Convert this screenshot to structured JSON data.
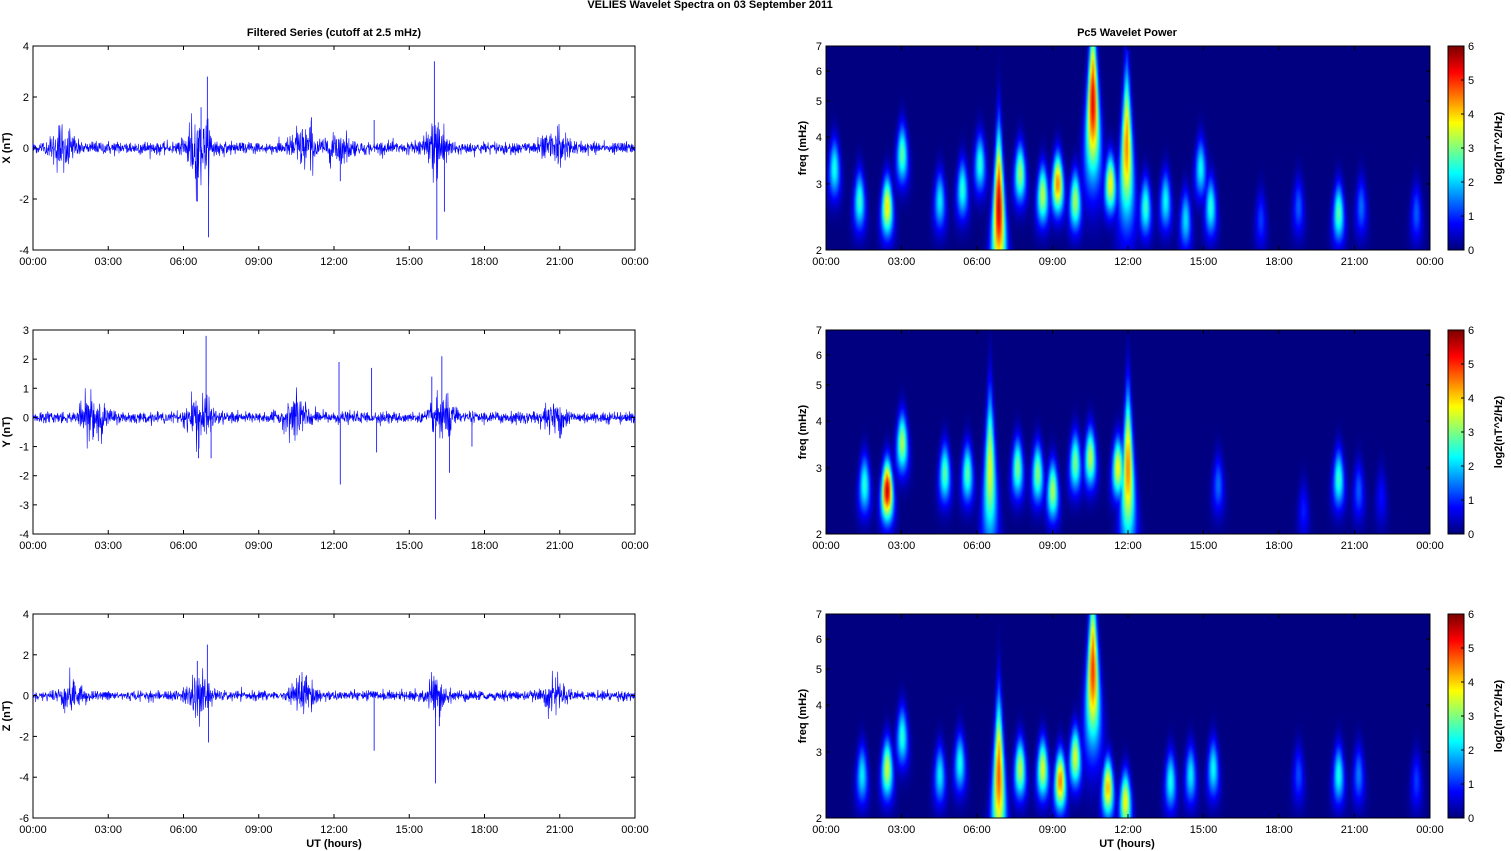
{
  "figure": {
    "title": "VELIES Wavelet Spectra on 03 September 2011",
    "left_title": "Filtered Series (cutoff at 2.5 mHz)",
    "right_title": "Pc5 Wavelet Power",
    "xlabel": "UT (hours)"
  },
  "chart_data": [
    {
      "type": "line",
      "panel": "X",
      "title": "Filtered Series (cutoff at 2.5 mHz)",
      "ylabel": "X (nT)",
      "xlabel": "",
      "xlim": [
        0,
        24
      ],
      "ylim": [
        -4,
        4
      ],
      "yticks": [
        -4,
        -2,
        0,
        2,
        4
      ],
      "xticklabels": [
        "00:00",
        "03:00",
        "06:00",
        "09:00",
        "12:00",
        "15:00",
        "18:00",
        "21:00",
        "00:00"
      ],
      "color": "#0000ff",
      "base_amplitude": 0.15,
      "bursts": [
        {
          "t": 1.2,
          "amp": 0.45
        },
        {
          "t": 6.6,
          "amp": 0.8
        },
        {
          "t": 10.8,
          "amp": 0.55
        },
        {
          "t": 12.2,
          "amp": 0.35
        },
        {
          "t": 16.1,
          "amp": 0.6
        },
        {
          "t": 20.8,
          "amp": 0.45
        }
      ],
      "spikes": [
        {
          "t": 6.55,
          "v": -2.1
        },
        {
          "t": 6.7,
          "v": 1.6
        },
        {
          "t": 6.95,
          "v": 2.8
        },
        {
          "t": 7.0,
          "v": -3.5
        },
        {
          "t": 11.1,
          "v": 1.2
        },
        {
          "t": 12.25,
          "v": -1.3
        },
        {
          "t": 13.6,
          "v": 1.1
        },
        {
          "t": 16.0,
          "v": 3.4
        },
        {
          "t": 16.1,
          "v": -3.6
        },
        {
          "t": 16.4,
          "v": -2.5
        }
      ]
    },
    {
      "type": "line",
      "panel": "Y",
      "title": "",
      "ylabel": "Y (nT)",
      "xlabel": "",
      "xlim": [
        0,
        24
      ],
      "ylim": [
        -4,
        3
      ],
      "yticks": [
        -4,
        -3,
        -2,
        -1,
        0,
        1,
        2,
        3
      ],
      "xticklabels": [
        "00:00",
        "03:00",
        "06:00",
        "09:00",
        "12:00",
        "15:00",
        "18:00",
        "21:00",
        "00:00"
      ],
      "color": "#0000ff",
      "base_amplitude": 0.12,
      "bursts": [
        {
          "t": 2.4,
          "amp": 0.5
        },
        {
          "t": 6.6,
          "amp": 0.5
        },
        {
          "t": 10.5,
          "amp": 0.4
        },
        {
          "t": 16.3,
          "amp": 0.45
        },
        {
          "t": 20.8,
          "amp": 0.3
        }
      ],
      "spikes": [
        {
          "t": 6.6,
          "v": -1.4
        },
        {
          "t": 6.9,
          "v": 2.8
        },
        {
          "t": 7.1,
          "v": -1.4
        },
        {
          "t": 12.2,
          "v": 1.9
        },
        {
          "t": 12.25,
          "v": -2.3
        },
        {
          "t": 13.5,
          "v": 1.7
        },
        {
          "t": 13.7,
          "v": -1.2
        },
        {
          "t": 15.9,
          "v": 1.4
        },
        {
          "t": 16.05,
          "v": -3.5
        },
        {
          "t": 16.3,
          "v": 2.1
        },
        {
          "t": 16.6,
          "v": -1.9
        },
        {
          "t": 17.5,
          "v": -1.0
        }
      ]
    },
    {
      "type": "line",
      "panel": "Z",
      "title": "",
      "ylabel": "Z (nT)",
      "xlabel": "UT (hours)",
      "xlim": [
        0,
        24
      ],
      "ylim": [
        -6,
        4
      ],
      "yticks": [
        -6,
        -4,
        -2,
        0,
        2,
        4
      ],
      "xticklabels": [
        "00:00",
        "03:00",
        "06:00",
        "09:00",
        "12:00",
        "15:00",
        "18:00",
        "21:00",
        "00:00"
      ],
      "color": "#0000ff",
      "base_amplitude": 0.15,
      "bursts": [
        {
          "t": 1.5,
          "amp": 0.4
        },
        {
          "t": 6.6,
          "amp": 0.6
        },
        {
          "t": 10.8,
          "amp": 0.5
        },
        {
          "t": 16.0,
          "amp": 0.45
        },
        {
          "t": 20.8,
          "amp": 0.4
        }
      ],
      "spikes": [
        {
          "t": 6.55,
          "v": 1.7
        },
        {
          "t": 6.95,
          "v": 2.5
        },
        {
          "t": 7.0,
          "v": -2.3
        },
        {
          "t": 10.9,
          "v": 1.0
        },
        {
          "t": 13.6,
          "v": -2.7
        },
        {
          "t": 16.05,
          "v": -4.3
        },
        {
          "t": 16.2,
          "v": -1.5
        }
      ]
    },
    {
      "type": "heatmap",
      "panel": "X",
      "title": "Pc5 Wavelet Power",
      "ylabel": "freq (mHz)",
      "xlabel": "",
      "xlim": [
        0,
        24
      ],
      "ylim": [
        2,
        7
      ],
      "yscale": "log",
      "yticks": [
        2,
        3,
        4,
        5,
        6,
        7
      ],
      "xticklabels": [
        "00:00",
        "03:00",
        "06:00",
        "09:00",
        "12:00",
        "15:00",
        "18:00",
        "21:00",
        "00:00"
      ],
      "colorbar_label": "log2(nT^2/Hz)",
      "clim": [
        0,
        6
      ],
      "colorbar_ticks": [
        0,
        1,
        2,
        3,
        4,
        5,
        6
      ],
      "blobs": [
        {
          "t": 0.3,
          "f": 3.3,
          "p": 2.4
        },
        {
          "t": 1.3,
          "f": 2.7,
          "p": 2.6
        },
        {
          "t": 2.4,
          "f": 2.6,
          "p": 3.9
        },
        {
          "t": 3.0,
          "f": 3.6,
          "p": 2.8
        },
        {
          "t": 4.5,
          "f": 2.7,
          "p": 2.2
        },
        {
          "t": 5.4,
          "f": 2.9,
          "p": 2.5
        },
        {
          "t": 6.1,
          "f": 3.4,
          "p": 2.5
        },
        {
          "t": 6.85,
          "f": 2.6,
          "p": 5.6,
          "col": true
        },
        {
          "t": 7.7,
          "f": 3.2,
          "p": 3.2
        },
        {
          "t": 8.6,
          "f": 2.8,
          "p": 3.4
        },
        {
          "t": 9.2,
          "f": 3.0,
          "p": 4.5
        },
        {
          "t": 9.9,
          "f": 2.7,
          "p": 3.3
        },
        {
          "t": 10.6,
          "f": 5.0,
          "p": 5.4,
          "col": true
        },
        {
          "t": 11.3,
          "f": 3.0,
          "p": 3.8
        },
        {
          "t": 11.95,
          "f": 3.8,
          "p": 4.5,
          "col": true
        },
        {
          "t": 12.7,
          "f": 2.6,
          "p": 2.6
        },
        {
          "t": 13.5,
          "f": 2.7,
          "p": 2.3
        },
        {
          "t": 14.3,
          "f": 2.4,
          "p": 2.1
        },
        {
          "t": 14.9,
          "f": 3.3,
          "p": 2.3
        },
        {
          "t": 15.3,
          "f": 2.6,
          "p": 2.5
        },
        {
          "t": 17.3,
          "f": 2.4,
          "p": 1.1
        },
        {
          "t": 18.8,
          "f": 2.6,
          "p": 1.3
        },
        {
          "t": 20.4,
          "f": 2.5,
          "p": 2.8
        },
        {
          "t": 21.3,
          "f": 2.6,
          "p": 1.4
        },
        {
          "t": 23.5,
          "f": 2.5,
          "p": 1.3
        }
      ]
    },
    {
      "type": "heatmap",
      "panel": "Y",
      "title": "",
      "ylabel": "freq (mHz)",
      "xlabel": "",
      "xlim": [
        0,
        24
      ],
      "ylim": [
        2,
        7
      ],
      "yscale": "log",
      "yticks": [
        2,
        3,
        4,
        5,
        6,
        7
      ],
      "xticklabels": [
        "00:00",
        "03:00",
        "06:00",
        "09:00",
        "12:00",
        "15:00",
        "18:00",
        "21:00",
        "00:00"
      ],
      "colorbar_label": "log2(nT^2/Hz)",
      "clim": [
        0,
        6
      ],
      "colorbar_ticks": [
        0,
        1,
        2,
        3,
        4,
        5,
        6
      ],
      "blobs": [
        {
          "t": 1.5,
          "f": 2.7,
          "p": 2.5
        },
        {
          "t": 2.4,
          "f": 2.6,
          "p": 5.6
        },
        {
          "t": 3.0,
          "f": 3.5,
          "p": 3.3
        },
        {
          "t": 4.7,
          "f": 2.9,
          "p": 2.8
        },
        {
          "t": 5.6,
          "f": 2.9,
          "p": 2.8
        },
        {
          "t": 6.5,
          "f": 3.0,
          "p": 3.6,
          "col": true
        },
        {
          "t": 7.6,
          "f": 3.0,
          "p": 3.0
        },
        {
          "t": 8.4,
          "f": 2.9,
          "p": 3.1
        },
        {
          "t": 9.0,
          "f": 2.6,
          "p": 3.3
        },
        {
          "t": 9.9,
          "f": 3.1,
          "p": 3.0
        },
        {
          "t": 10.5,
          "f": 3.2,
          "p": 3.4
        },
        {
          "t": 11.6,
          "f": 3.0,
          "p": 3.8
        },
        {
          "t": 12.0,
          "f": 3.0,
          "p": 4.5,
          "col": true
        },
        {
          "t": 15.6,
          "f": 2.7,
          "p": 1.4
        },
        {
          "t": 19.0,
          "f": 2.3,
          "p": 0.9
        },
        {
          "t": 20.4,
          "f": 2.8,
          "p": 2.6
        },
        {
          "t": 21.2,
          "f": 2.6,
          "p": 1.3
        },
        {
          "t": 22.1,
          "f": 2.5,
          "p": 0.8
        }
      ]
    },
    {
      "type": "heatmap",
      "panel": "Z",
      "title": "",
      "ylabel": "freq (mHz)",
      "xlabel": "UT (hours)",
      "xlim": [
        0,
        24
      ],
      "ylim": [
        2,
        7
      ],
      "yscale": "log",
      "yticks": [
        2,
        3,
        4,
        5,
        6,
        7
      ],
      "xticklabels": [
        "00:00",
        "03:00",
        "06:00",
        "09:00",
        "12:00",
        "15:00",
        "18:00",
        "21:00",
        "00:00"
      ],
      "colorbar_label": "log2(nT^2/Hz)",
      "clim": [
        0,
        6
      ],
      "colorbar_ticks": [
        0,
        1,
        2,
        3,
        4,
        5,
        6
      ],
      "blobs": [
        {
          "t": 1.4,
          "f": 2.6,
          "p": 2.2
        },
        {
          "t": 2.4,
          "f": 2.7,
          "p": 3.5
        },
        {
          "t": 3.0,
          "f": 3.3,
          "p": 2.5
        },
        {
          "t": 4.5,
          "f": 2.6,
          "p": 2.2
        },
        {
          "t": 5.3,
          "f": 2.8,
          "p": 2.4
        },
        {
          "t": 6.85,
          "f": 2.6,
          "p": 4.8,
          "col": true
        },
        {
          "t": 7.7,
          "f": 2.7,
          "p": 3.4
        },
        {
          "t": 8.6,
          "f": 2.7,
          "p": 3.6
        },
        {
          "t": 9.3,
          "f": 2.5,
          "p": 4.5
        },
        {
          "t": 9.9,
          "f": 2.9,
          "p": 3.6
        },
        {
          "t": 10.6,
          "f": 5.0,
          "p": 5.0,
          "col": true
        },
        {
          "t": 11.2,
          "f": 2.4,
          "p": 4.2
        },
        {
          "t": 11.9,
          "f": 2.2,
          "p": 3.8
        },
        {
          "t": 13.7,
          "f": 2.5,
          "p": 2.4
        },
        {
          "t": 14.5,
          "f": 2.6,
          "p": 2.2
        },
        {
          "t": 15.4,
          "f": 2.7,
          "p": 2.3
        },
        {
          "t": 18.8,
          "f": 2.6,
          "p": 1.2
        },
        {
          "t": 20.4,
          "f": 2.6,
          "p": 2.4
        },
        {
          "t": 21.2,
          "f": 2.6,
          "p": 1.5
        },
        {
          "t": 23.5,
          "f": 2.5,
          "p": 1.1
        }
      ]
    }
  ]
}
